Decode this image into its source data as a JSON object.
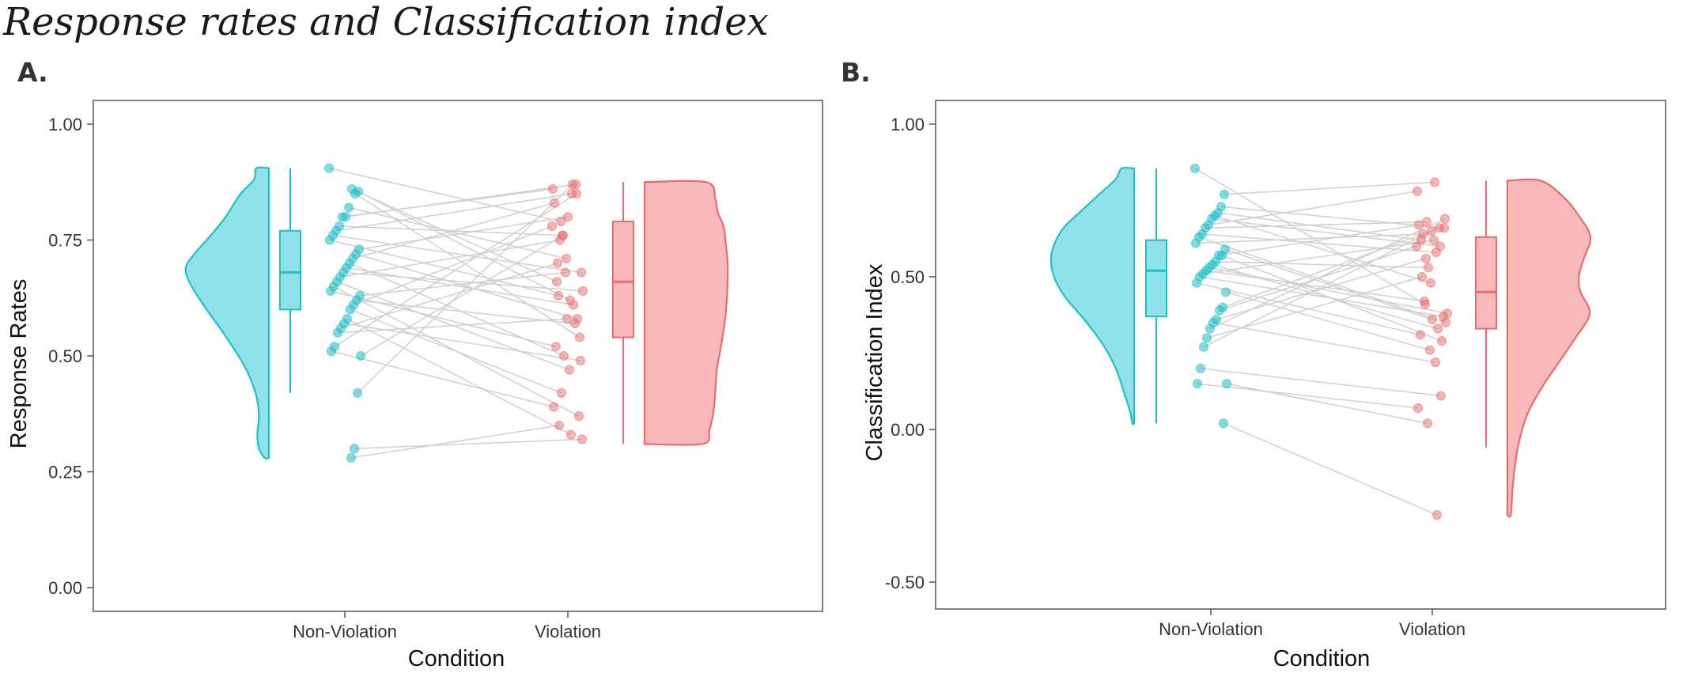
{
  "page": {
    "title": "Response rates and Classification index",
    "panel_a_label": "A.",
    "panel_b_label": "B."
  },
  "colors": {
    "non_violation": "#1fbfc9",
    "non_violation_fill": "#8fe3e8",
    "violation": "#e96b6b",
    "violation_fill": "#f7b9b9",
    "pair_line": "#cfcfcf",
    "frame": "#555555"
  },
  "chart_data": [
    {
      "type": "raincloud",
      "xlabel": "Condition",
      "ylabel": "Response Rates",
      "categories": [
        "Non-Violation",
        "Violation"
      ],
      "ylim": [
        0.0,
        1.0
      ],
      "yticks": [
        0.0,
        0.25,
        0.5,
        0.75,
        1.0
      ],
      "ytick_labels": [
        "0.00",
        "0.25",
        "0.50",
        "0.75",
        "1.00"
      ],
      "grid": false,
      "boxplots": [
        {
          "condition": "Non-Violation",
          "min": 0.42,
          "q1": 0.6,
          "median": 0.68,
          "q3": 0.77,
          "max": 0.905
        },
        {
          "condition": "Violation",
          "min": 0.31,
          "q1": 0.54,
          "median": 0.66,
          "q3": 0.79,
          "max": 0.875
        }
      ],
      "densities": [
        {
          "condition": "Non-Violation",
          "range": [
            0.28,
            0.905
          ],
          "y": [
            0.28,
            0.3,
            0.33,
            0.37,
            0.42,
            0.48,
            0.55,
            0.6,
            0.65,
            0.68,
            0.7,
            0.73,
            0.76,
            0.8,
            0.85,
            0.88,
            0.905
          ],
          "density": [
            0.05,
            0.12,
            0.14,
            0.12,
            0.16,
            0.3,
            0.55,
            0.75,
            0.93,
            1.0,
            0.98,
            0.85,
            0.7,
            0.52,
            0.34,
            0.18,
            0.15
          ]
        },
        {
          "condition": "Violation",
          "range": [
            0.31,
            0.875
          ],
          "y": [
            0.31,
            0.34,
            0.38,
            0.42,
            0.47,
            0.52,
            0.58,
            0.62,
            0.66,
            0.7,
            0.74,
            0.78,
            0.81,
            0.84,
            0.875
          ],
          "density": [
            0.7,
            0.78,
            0.83,
            0.85,
            0.87,
            0.92,
            0.97,
            0.99,
            1.0,
            1.0,
            0.98,
            0.95,
            0.88,
            0.85,
            0.74
          ]
        }
      ],
      "pairs": [
        [
          0.905,
          0.79
        ],
        [
          0.855,
          0.62
        ],
        [
          0.85,
          0.54
        ],
        [
          0.86,
          0.66
        ],
        [
          0.82,
          0.71
        ],
        [
          0.8,
          0.87
        ],
        [
          0.8,
          0.86
        ],
        [
          0.78,
          0.76
        ],
        [
          0.77,
          0.85
        ],
        [
          0.76,
          0.68
        ],
        [
          0.75,
          0.63
        ],
        [
          0.73,
          0.8
        ],
        [
          0.72,
          0.58
        ],
        [
          0.71,
          0.83
        ],
        [
          0.7,
          0.5
        ],
        [
          0.69,
          0.61
        ],
        [
          0.68,
          0.64
        ],
        [
          0.67,
          0.75
        ],
        [
          0.66,
          0.47
        ],
        [
          0.65,
          0.37
        ],
        [
          0.64,
          0.52
        ],
        [
          0.63,
          0.68
        ],
        [
          0.62,
          0.57
        ],
        [
          0.61,
          0.78
        ],
        [
          0.6,
          0.42
        ],
        [
          0.58,
          0.33
        ],
        [
          0.57,
          0.49
        ],
        [
          0.56,
          0.7
        ],
        [
          0.55,
          0.58
        ],
        [
          0.52,
          0.85
        ],
        [
          0.51,
          0.39
        ],
        [
          0.5,
          0.76
        ],
        [
          0.42,
          0.87
        ],
        [
          0.3,
          0.32
        ],
        [
          0.28,
          0.35
        ]
      ]
    },
    {
      "type": "raincloud",
      "xlabel": "Condition",
      "ylabel": "Classification Index",
      "categories": [
        "Non-Violation",
        "Violation"
      ],
      "ylim": [
        -0.55,
        1.0
      ],
      "yticks": [
        -0.5,
        0.0,
        0.5,
        1.0
      ],
      "ytick_labels": [
        "-0.50",
        "0.00",
        "0.50",
        "1.00"
      ],
      "grid": false,
      "boxplots": [
        {
          "condition": "Non-Violation",
          "min": 0.02,
          "q1": 0.37,
          "median": 0.52,
          "q3": 0.62,
          "max": 0.855
        },
        {
          "condition": "Violation",
          "min": -0.06,
          "q1": 0.33,
          "median": 0.45,
          "q3": 0.63,
          "max": 0.815
        }
      ],
      "densities": [
        {
          "condition": "Non-Violation",
          "range": [
            0.02,
            0.855
          ],
          "y": [
            0.02,
            0.06,
            0.12,
            0.2,
            0.28,
            0.36,
            0.43,
            0.49,
            0.55,
            0.6,
            0.66,
            0.72,
            0.78,
            0.82,
            0.855
          ],
          "density": [
            0.02,
            0.05,
            0.12,
            0.22,
            0.38,
            0.6,
            0.82,
            0.95,
            1.0,
            0.97,
            0.85,
            0.62,
            0.38,
            0.22,
            0.15
          ]
        },
        {
          "condition": "Violation",
          "range": [
            -0.28,
            0.815
          ],
          "y": [
            -0.28,
            -0.2,
            -0.12,
            -0.04,
            0.05,
            0.14,
            0.22,
            0.3,
            0.38,
            0.45,
            0.5,
            0.56,
            0.63,
            0.7,
            0.76,
            0.815
          ],
          "density": [
            0.04,
            0.06,
            0.09,
            0.14,
            0.24,
            0.42,
            0.62,
            0.82,
            0.99,
            0.88,
            0.86,
            0.92,
            1.0,
            0.86,
            0.68,
            0.4
          ]
        }
      ],
      "pairs": [
        [
          0.855,
          0.41
        ],
        [
          0.77,
          0.81
        ],
        [
          0.73,
          0.66
        ],
        [
          0.71,
          0.62
        ],
        [
          0.7,
          0.48
        ],
        [
          0.69,
          0.6
        ],
        [
          0.67,
          0.78
        ],
        [
          0.66,
          0.68
        ],
        [
          0.64,
          0.58
        ],
        [
          0.63,
          0.35
        ],
        [
          0.61,
          0.64
        ],
        [
          0.59,
          0.36
        ],
        [
          0.57,
          0.29
        ],
        [
          0.57,
          0.67
        ],
        [
          0.55,
          0.53
        ],
        [
          0.54,
          0.33
        ],
        [
          0.53,
          0.38
        ],
        [
          0.52,
          0.42
        ],
        [
          0.51,
          0.62
        ],
        [
          0.5,
          0.37
        ],
        [
          0.48,
          0.31
        ],
        [
          0.45,
          0.26
        ],
        [
          0.4,
          0.66
        ],
        [
          0.39,
          0.6
        ],
        [
          0.36,
          0.56
        ],
        [
          0.35,
          0.22
        ],
        [
          0.33,
          0.69
        ],
        [
          0.3,
          0.5
        ],
        [
          0.27,
          0.65
        ],
        [
          0.2,
          0.11
        ],
        [
          0.15,
          0.07
        ],
        [
          0.15,
          0.02
        ],
        [
          0.02,
          -0.28
        ]
      ]
    }
  ]
}
